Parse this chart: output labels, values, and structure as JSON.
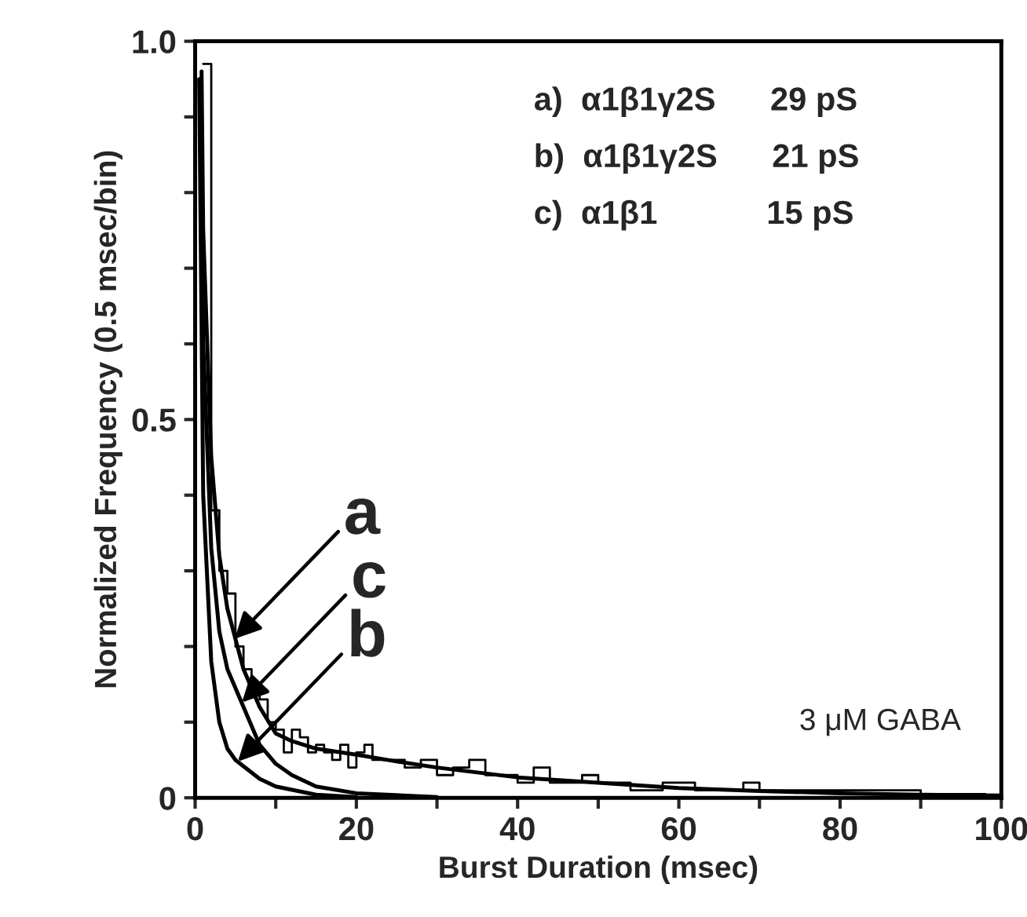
{
  "chart_data": {
    "type": "line",
    "xlabel": "Burst Duration (msec)",
    "ylabel": "Normalized Frequency (0.5 msec/bin)",
    "xlim": [
      0,
      100
    ],
    "ylim": [
      0,
      1.0
    ],
    "xticks": [
      0,
      {
        "value": 10,
        "label": null
      },
      20,
      {
        "value": 30,
        "label": null
      },
      40,
      {
        "value": 50,
        "label": null
      },
      60,
      {
        "value": 70,
        "label": null
      },
      80,
      {
        "value": 90,
        "label": null
      },
      100
    ],
    "yticks": [
      0,
      {
        "value": 0.1,
        "label": null
      },
      {
        "value": 0.2,
        "label": null
      },
      {
        "value": 0.3,
        "label": null
      },
      {
        "value": 0.4,
        "label": null
      },
      {
        "value": 0.5,
        "label": "0.5"
      },
      {
        "value": 0.6,
        "label": null
      },
      {
        "value": 0.7,
        "label": null
      },
      {
        "value": 0.8,
        "label": null
      },
      {
        "value": 0.9,
        "label": null
      },
      {
        "value": 1.0,
        "label": "1.0"
      }
    ],
    "grid": false,
    "legend": false,
    "marker": "none",
    "line_style": "solid",
    "series": [
      {
        "type": "step",
        "color": "#000000",
        "x": [
          1,
          2,
          3,
          4,
          5,
          6,
          7,
          8,
          9,
          10,
          11,
          12,
          13,
          14,
          15,
          16,
          17,
          18,
          19,
          20,
          21,
          22,
          24,
          26,
          28,
          30,
          32,
          34,
          36,
          38,
          40,
          42,
          44,
          46,
          48,
          50,
          54,
          58,
          62,
          68,
          70,
          76,
          80,
          90,
          98
        ],
        "values": [
          0.97,
          0.38,
          0.3,
          0.27,
          0.2,
          0.17,
          0.14,
          0.13,
          0.1,
          0.09,
          0.06,
          0.09,
          0.08,
          0.06,
          0.07,
          0.06,
          0.05,
          0.07,
          0.04,
          0.06,
          0.07,
          0.05,
          0.05,
          0.04,
          0.05,
          0.03,
          0.04,
          0.05,
          0.03,
          0.03,
          0.02,
          0.04,
          0.02,
          0.02,
          0.03,
          0.02,
          0.01,
          0.02,
          0.01,
          0.02,
          0.01,
          0.01,
          0.01,
          0.005,
          0.005
        ]
      },
      {
        "color": "#000000",
        "x": [
          0.8,
          1,
          2,
          3,
          4,
          5,
          6,
          8,
          10,
          12,
          15,
          20,
          25,
          30,
          40,
          50,
          60,
          70,
          80,
          90,
          100
        ],
        "values": [
          0.96,
          0.75,
          0.45,
          0.32,
          0.25,
          0.21,
          0.17,
          0.12,
          0.085,
          0.075,
          0.065,
          0.057,
          0.048,
          0.04,
          0.027,
          0.02,
          0.013,
          0.009,
          0.006,
          0.004,
          0.003
        ]
      },
      {
        "color": "#000000",
        "x": [
          0.6,
          1,
          2,
          3,
          4,
          6,
          8,
          10,
          12,
          15,
          20,
          30
        ],
        "values": [
          0.95,
          0.6,
          0.33,
          0.22,
          0.17,
          0.12,
          0.07,
          0.045,
          0.03,
          0.015,
          0.006,
          0.001
        ]
      },
      {
        "color": "#000000",
        "x": [
          0.5,
          1,
          2,
          3,
          4,
          5,
          8,
          10,
          15,
          20
        ],
        "values": [
          0.95,
          0.4,
          0.18,
          0.1,
          0.065,
          0.05,
          0.025,
          0.015,
          0.004,
          0.001
        ]
      }
    ],
    "annotations": [
      {
        "text": "a",
        "x": 4.9,
        "y": 0.21
      },
      {
        "text": "c",
        "x": 5.8,
        "y": 0.126
      },
      {
        "text": "b",
        "x": 5.3,
        "y": 0.048
      },
      "a)  α1β1γ2S      29 pS",
      "b)  α1β1γ2S      21 pS",
      "c)  α1β1            15 pS",
      "3 μM GABA"
    ]
  }
}
